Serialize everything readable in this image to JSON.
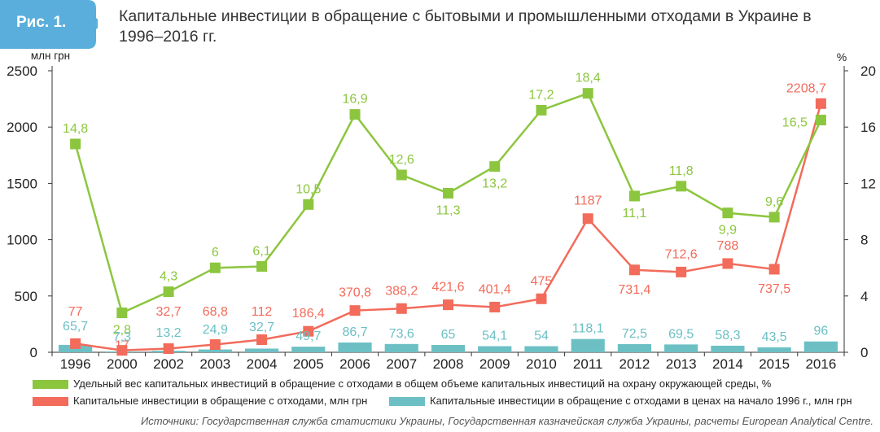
{
  "figure": {
    "badge": "Рис. 1.",
    "title": "Капитальные инвестиции в обращение с бытовыми и промышленными отходами в Украине в 1996–2016 гг.",
    "source": "Источники: Государственная служба статистики Украины, Государственная казначейская служба Украины, расчеты European Analytical Centre."
  },
  "colors": {
    "badge": "#5aaedb",
    "green": "#8cc63f",
    "red": "#f26b5b",
    "teal": "#6cc0c4",
    "axis": "#333333"
  },
  "chart_data": {
    "type": "bar+line",
    "categories": [
      "1996",
      "2000",
      "2002",
      "2003",
      "2004",
      "2005",
      "2006",
      "2007",
      "2008",
      "2009",
      "2010",
      "2011",
      "2012",
      "2013",
      "2014",
      "2015",
      "2016"
    ],
    "y_left": {
      "label": "млн грн",
      "ticks": [
        "0",
        "500",
        "1000",
        "1500",
        "2000",
        "2500"
      ],
      "range": [
        0,
        2500
      ]
    },
    "y_right": {
      "label": "%",
      "ticks": [
        "0",
        "4",
        "8",
        "12",
        "16",
        "20"
      ],
      "range": [
        0,
        20
      ]
    },
    "grid": false,
    "legend_position": "bottom",
    "series": [
      {
        "name": "Удельный вес капитальных инвестиций в обращение с отходами в общем объеме капитальных инвестиций на охрану окружающей среды, %",
        "type": "line",
        "axis": "right",
        "color": "#8cc63f",
        "values": [
          14.8,
          2.8,
          4.3,
          6,
          6.1,
          10.5,
          16.9,
          12.6,
          11.3,
          13.2,
          17.2,
          18.4,
          11.1,
          11.8,
          9.9,
          9.6,
          16.5
        ],
        "labels": [
          "14,8",
          "2,8",
          "4,3",
          "6",
          "6,1",
          "10,5",
          "16,9",
          "12,6",
          "11,3",
          "13,2",
          "17,2",
          "18,4",
          "11,1",
          "11,8",
          "9,9",
          "9,6",
          "16,5"
        ]
      },
      {
        "name": "Капитальные инвестиции в обращение с отходами, млн грн",
        "type": "line",
        "axis": "left",
        "color": "#f26b5b",
        "values": [
          77,
          17,
          32.7,
          68.8,
          112,
          186.4,
          370.8,
          388.2,
          421.6,
          401.4,
          475,
          1187,
          731.4,
          712.6,
          788,
          737.5,
          2208.7
        ],
        "labels": [
          "77",
          "17",
          "32,7",
          "68,8",
          "112",
          "186,4",
          "370,8",
          "388,2",
          "421,6",
          "401,4",
          "475",
          "1187",
          "731,4",
          "712,6",
          "788",
          "737,5",
          "2208,7"
        ]
      },
      {
        "name": "Капитальные инвестиции в обращение с отходами в ценах на начало 1996 г., млн грн",
        "type": "bar",
        "axis": "left",
        "color": "#6cc0c4",
        "values": [
          65.7,
          7.3,
          13.2,
          24.9,
          32.7,
          49.7,
          86.7,
          73.6,
          65,
          54.1,
          54,
          118.1,
          72.5,
          69.5,
          58.3,
          43.5,
          96
        ],
        "labels": [
          "65,7",
          "7,3",
          "13,2",
          "24,9",
          "32,7",
          "49,7",
          "86,7",
          "73,6",
          "65",
          "54,1",
          "54",
          "118,1",
          "72,5",
          "69,5",
          "58,3",
          "43,5",
          "96"
        ]
      }
    ]
  }
}
